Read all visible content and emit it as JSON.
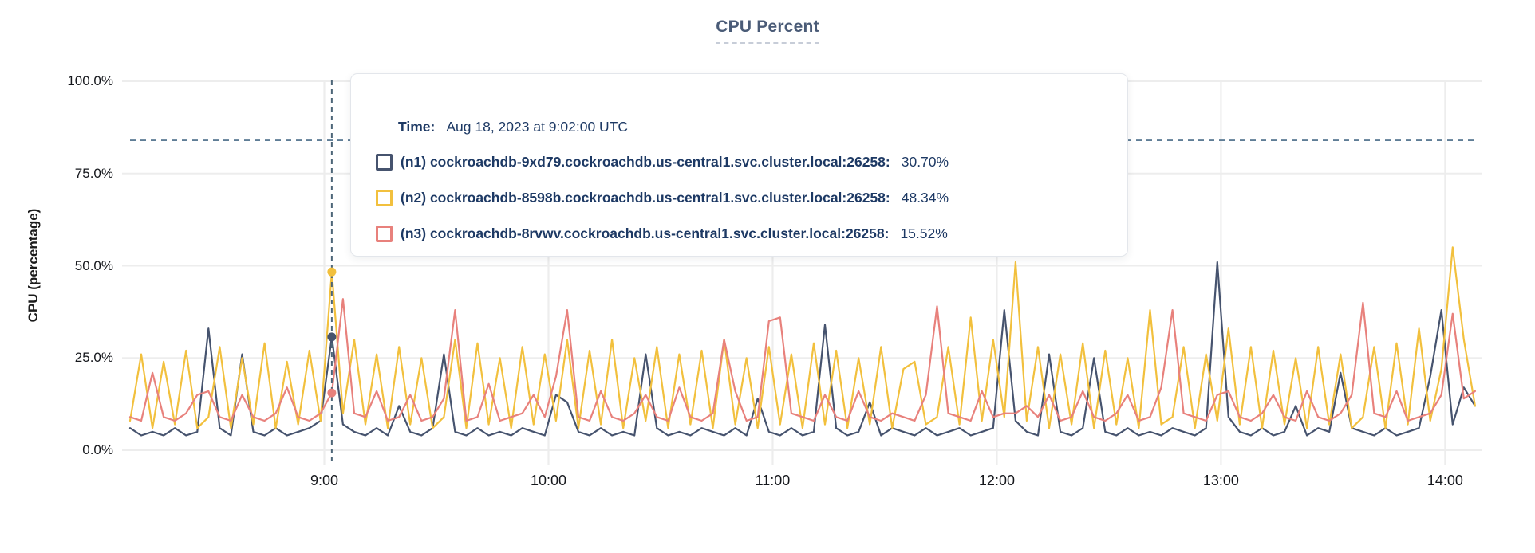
{
  "title": "CPU Percent",
  "tooltip": {
    "time_label": "Time:",
    "time_value": "Aug 18, 2023 at 9:02:00 UTC",
    "rows": [
      {
        "name": "(n1) cockroachdb-9xd79.cockroachdb.us-central1.svc.cluster.local:26258:",
        "value": "30.70%"
      },
      {
        "name": "(n2) cockroachdb-8598b.cockroachdb.us-central1.svc.cluster.local:26258:",
        "value": "48.34%"
      },
      {
        "name": "(n3) cockroachdb-8rvwv.cockroachdb.us-central1.svc.cluster.local:26258:",
        "value": "15.52%"
      }
    ]
  },
  "chart_data": {
    "type": "line",
    "title": "CPU Percent",
    "xlabel": "",
    "ylabel": "CPU (percentage)",
    "ylim": [
      0,
      100
    ],
    "grid": true,
    "legend_position": "tooltip-overlay",
    "y_ticks": [
      {
        "label": "0.0%",
        "value": 0
      },
      {
        "label": "25.0%",
        "value": 25
      },
      {
        "label": "50.0%",
        "value": 50
      },
      {
        "label": "75.0%",
        "value": 75
      },
      {
        "label": "100.0%",
        "value": 100
      }
    ],
    "x_axis": {
      "start": "8:08",
      "end": "14:08",
      "step_minutes": 3,
      "total_minutes": 360
    },
    "x_ticks": [
      {
        "label": "9:00",
        "minute": 52
      },
      {
        "label": "10:00",
        "minute": 112
      },
      {
        "label": "11:00",
        "minute": 172
      },
      {
        "label": "12:00",
        "minute": 232
      },
      {
        "label": "13:00",
        "minute": 292
      },
      {
        "label": "14:00",
        "minute": 352
      }
    ],
    "threshold_percent": 84,
    "hover": {
      "index": 18,
      "time": "9:02",
      "values": {
        "n1": 30.7,
        "n2": 48.34,
        "n3": 15.52
      }
    },
    "series": [
      {
        "id": "n1",
        "name": "cockroachdb-9xd79.cockroachdb.us-central1.svc.cluster.local:26258",
        "color": "#46536e",
        "values": [
          6,
          4,
          5,
          4,
          6,
          4,
          5,
          33,
          6,
          4,
          26,
          5,
          4,
          6,
          4,
          5,
          6,
          8,
          30.7,
          7,
          5,
          4,
          6,
          4,
          12,
          5,
          4,
          6,
          26,
          5,
          4,
          6,
          4,
          5,
          4,
          6,
          5,
          4,
          15,
          13,
          5,
          4,
          6,
          4,
          5,
          4,
          26,
          6,
          4,
          5,
          4,
          6,
          5,
          4,
          6,
          4,
          14,
          5,
          4,
          6,
          4,
          5,
          34,
          6,
          4,
          5,
          13,
          4,
          6,
          5,
          4,
          6,
          4,
          5,
          6,
          4,
          5,
          6,
          38,
          8,
          5,
          4,
          26,
          5,
          4,
          6,
          25,
          5,
          4,
          6,
          4,
          5,
          4,
          6,
          5,
          4,
          6,
          51,
          9,
          5,
          4,
          6,
          4,
          5,
          12,
          4,
          6,
          5,
          21,
          6,
          5,
          4,
          6,
          4,
          5,
          6,
          20,
          38,
          7,
          17,
          12
        ]
      },
      {
        "id": "n2",
        "name": "cockroachdb-8598b.cockroachdb.us-central1.svc.cluster.local:26258",
        "color": "#f2c03d",
        "values": [
          8,
          26,
          6,
          24,
          7,
          27,
          6,
          9,
          28,
          6,
          25,
          7,
          29,
          6,
          24,
          7,
          27,
          8,
          48.34,
          10,
          30,
          7,
          26,
          6,
          28,
          7,
          25,
          6,
          9,
          30,
          6,
          29,
          7,
          25,
          6,
          28,
          7,
          26,
          8,
          30,
          6,
          27,
          7,
          30,
          6,
          25,
          8,
          28,
          6,
          26,
          7,
          27,
          6,
          30,
          7,
          25,
          6,
          28,
          7,
          26,
          6,
          29,
          7,
          27,
          6,
          25,
          7,
          28,
          6,
          22,
          24,
          7,
          9,
          28,
          7,
          36,
          8,
          30,
          9,
          51,
          8,
          28,
          6,
          26,
          7,
          29,
          6,
          27,
          7,
          25,
          6,
          38,
          7,
          9,
          28,
          6,
          26,
          8,
          33,
          7,
          28,
          6,
          27,
          7,
          25,
          6,
          28,
          7,
          26,
          6,
          9,
          28,
          6,
          29,
          7,
          33,
          8,
          22,
          55,
          30,
          12
        ]
      },
      {
        "id": "n3",
        "name": "cockroachdb-8rvwv.cockroachdb.us-central1.svc.cluster.local:26258",
        "color": "#e8817c",
        "values": [
          9,
          8,
          21,
          9,
          8,
          10,
          15,
          16,
          9,
          8,
          15,
          9,
          8,
          10,
          17,
          9,
          8,
          10,
          15.52,
          41,
          10,
          9,
          16,
          8,
          9,
          15,
          8,
          9,
          14,
          38,
          8,
          9,
          18,
          8,
          9,
          10,
          15,
          9,
          20,
          38,
          9,
          8,
          16,
          9,
          8,
          10,
          15,
          9,
          8,
          17,
          9,
          8,
          10,
          30,
          16,
          8,
          9,
          35,
          36,
          10,
          9,
          8,
          15,
          9,
          8,
          16,
          9,
          8,
          10,
          9,
          8,
          15,
          39,
          10,
          9,
          8,
          16,
          9,
          10,
          10,
          12,
          9,
          15,
          8,
          9,
          16,
          9,
          8,
          10,
          15,
          8,
          9,
          17,
          38,
          10,
          9,
          8,
          15,
          16,
          9,
          8,
          10,
          15,
          9,
          8,
          16,
          9,
          8,
          10,
          15,
          40,
          10,
          9,
          16,
          8,
          9,
          10,
          15,
          37,
          14,
          16
        ]
      }
    ],
    "colors": {
      "grid": "#ededed",
      "threshold_line": "#5f7d96",
      "hover_line": "#4d6678",
      "title": "#4a5b77",
      "tooltip_text": "#1d3964",
      "axis_text": "#15171c"
    }
  }
}
